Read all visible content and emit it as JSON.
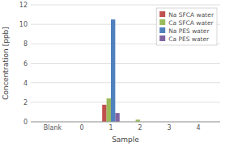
{
  "chart_data": {
    "type": "bar",
    "categories": [
      "Blank",
      "0",
      "1",
      "2",
      "3",
      "4"
    ],
    "series": [
      {
        "name": "Na SFCA water",
        "color": "#C0504D",
        "values": [
          0,
          0,
          1.75,
          0,
          0,
          0
        ]
      },
      {
        "name": "Ca SFCA water",
        "color": "#9BBB59",
        "values": [
          0,
          0,
          2.4,
          0.22,
          0,
          0
        ]
      },
      {
        "name": "Na PES water",
        "color": "#4F81BD",
        "values": [
          0,
          0,
          10.5,
          0,
          0,
          0
        ]
      },
      {
        "name": "Ca PES water",
        "color": "#8064A2",
        "values": [
          0,
          0,
          0.9,
          0,
          0,
          0
        ]
      }
    ],
    "xlabel": "Sample",
    "ylabel": "Concentration [ppb]",
    "ylim": [
      0,
      12
    ],
    "yticks": [
      0,
      2,
      4,
      6,
      8,
      10,
      12
    ],
    "grid": true,
    "legend": "upper right"
  }
}
